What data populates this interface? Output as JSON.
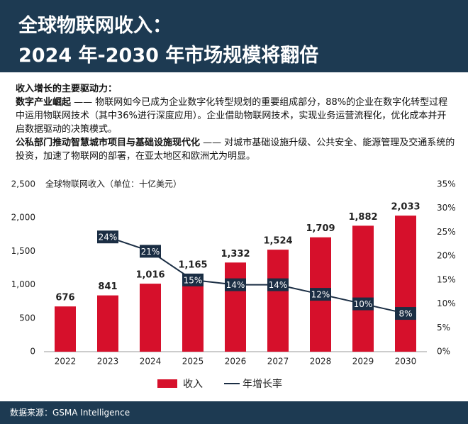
{
  "header": {
    "title_lines": [
      "全球物联网收入：",
      "2024 年-2030 年市场规模将翻倍"
    ]
  },
  "intro": {
    "heading": "收入增长的主要驱动力：",
    "items": [
      {
        "lead": "数字产业崛起",
        "text": " —— 物联网如今已成为企业数字化转型规划的重要组成部分，88%的企业在数字化转型过程中运用物联网技术（其中36%进行深度应用）。企业借助物联网技术，实现业务运营流程化，优化成本并开启数据驱动的决策模式。"
      },
      {
        "lead": "公私部门推动智慧城市项目与基础设施现代化",
        "text": " —— 对城市基础设施升级、公共安全、能源管理及交通系统的投资，加速了物联网的部署，在亚太地区和欧洲尤为明显。"
      }
    ]
  },
  "chart_data": {
    "type": "bar-line",
    "subtitle": "全球物联网收入（单位：十亿美元）",
    "categories": [
      "2022",
      "2023",
      "2024",
      "2025",
      "2026",
      "2027",
      "2028",
      "2029",
      "2030"
    ],
    "series": [
      {
        "name": "收入",
        "color": "#d6102b",
        "values": [
          676,
          841,
          1016,
          1165,
          1332,
          1524,
          1709,
          1882,
          2033
        ],
        "value_labels": [
          "676",
          "841",
          "1,016",
          "1,165",
          "1,332",
          "1,524",
          "1,709",
          "1,882",
          "2,033"
        ]
      },
      {
        "name": "年增长率",
        "color": "#1b2e44",
        "axis": "y2",
        "values": [
          null,
          24,
          21,
          15,
          14,
          14,
          12,
          10,
          8
        ],
        "value_labels": [
          null,
          "24%",
          "21%",
          "15%",
          "14%",
          "14%",
          "12%",
          "10%",
          "8%"
        ]
      }
    ],
    "ylim": [
      0,
      2500
    ],
    "yticks": [
      0,
      500,
      {
        "value": 1000,
        "label": "1,000"
      },
      {
        "value": 1500,
        "label": "1,500"
      },
      {
        "value": 2000,
        "label": "2,000"
      },
      {
        "value": 2500,
        "label": "2,500"
      }
    ],
    "y2lim": [
      0,
      35
    ],
    "y2ticks": [
      {
        "value": 0,
        "label": "0%"
      },
      {
        "value": 5,
        "label": "5%"
      },
      {
        "value": 10,
        "label": "10%"
      },
      {
        "value": 15,
        "label": "15%"
      },
      {
        "value": 20,
        "label": "20%"
      },
      {
        "value": 25,
        "label": "25%"
      },
      {
        "value": 30,
        "label": "30%"
      },
      {
        "value": 35,
        "label": "35%"
      }
    ],
    "grid": false
  },
  "source": "数据来源：GSMA Intelligence"
}
